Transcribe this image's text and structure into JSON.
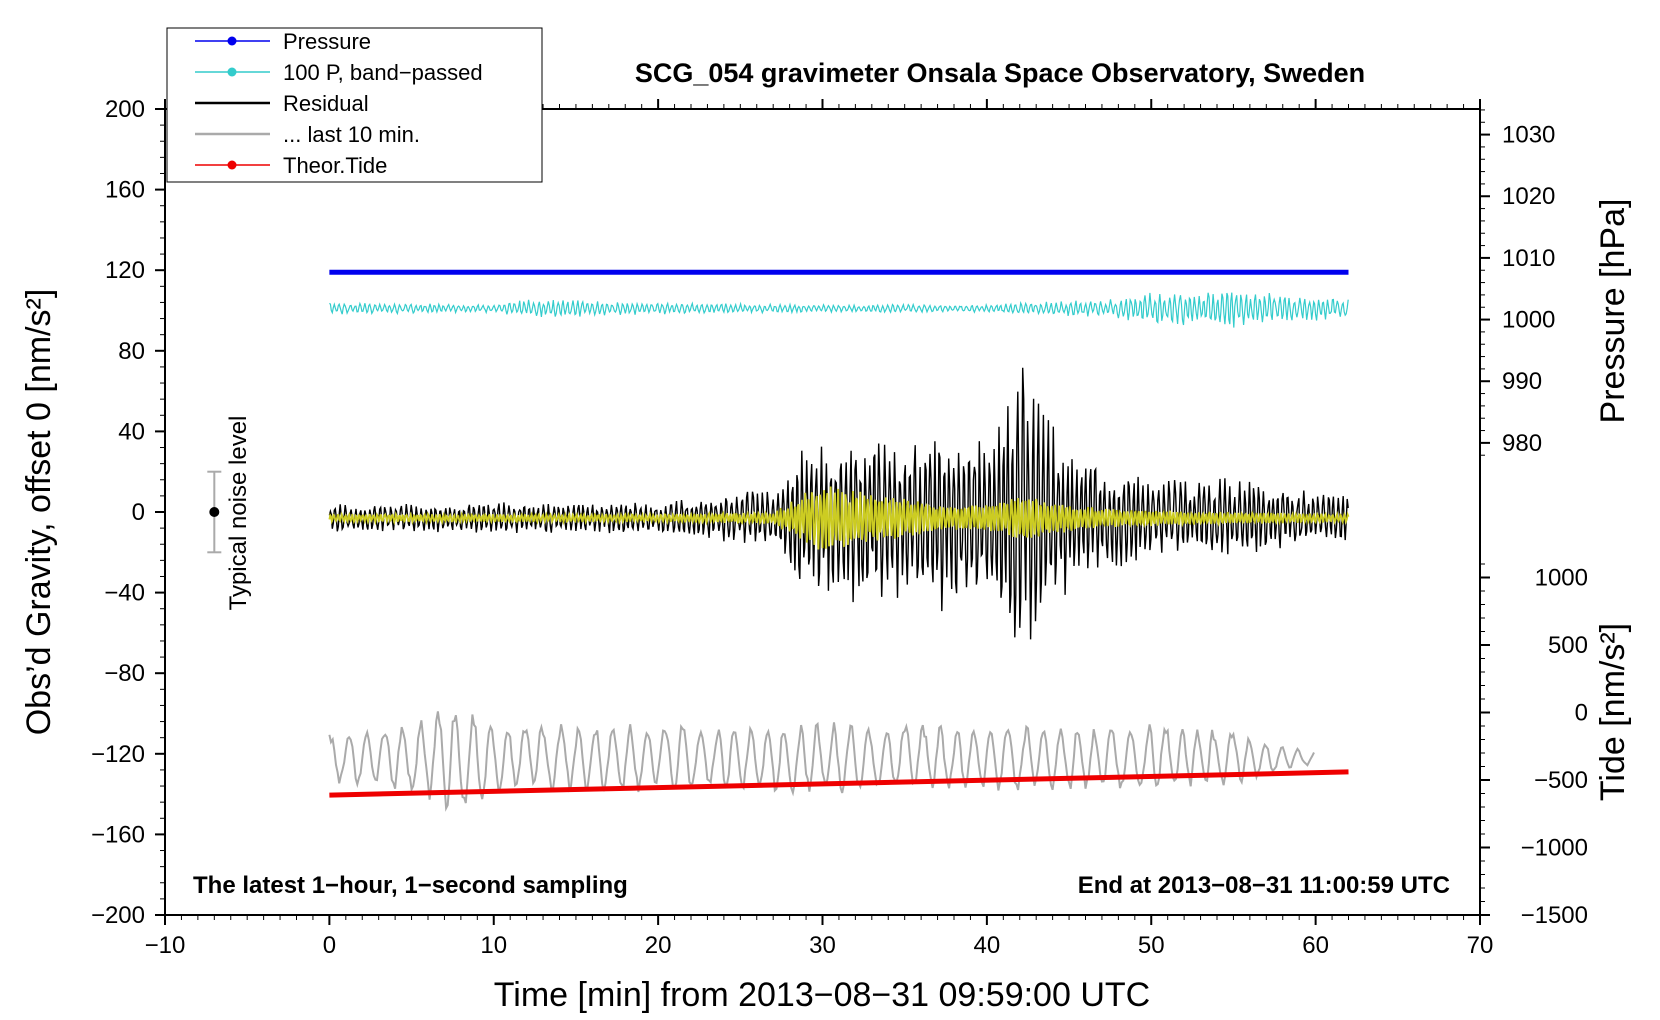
{
  "chart_data": {
    "type": "line",
    "title": "SCG_054 gravimeter Onsala Space Observatory, Sweden",
    "xlabel": "Time [min] from 2013−08−31 09:59:00 UTC",
    "ylabel": "Obs’d Gravity, offset 0 [nm/s²]",
    "ylabel_right_pressure": "Pressure [hPa]",
    "ylabel_right_tide": "Tide [nm/s²]",
    "xlim": [
      -10,
      70
    ],
    "ylim": [
      -200,
      200
    ],
    "x_ticks": [
      -10,
      0,
      10,
      20,
      30,
      40,
      50,
      60,
      70
    ],
    "x_tick_labels": [
      "−10",
      "0",
      "10",
      "20",
      "30",
      "40",
      "50",
      "60",
      "70"
    ],
    "y_ticks": [
      -200,
      -160,
      -120,
      -80,
      -40,
      0,
      40,
      80,
      120,
      160,
      200
    ],
    "y_tick_labels": [
      "−200",
      "−160",
      "−120",
      "−80",
      "−40",
      "0",
      "40",
      "80",
      "120",
      "160",
      "200"
    ],
    "pressure_axis": {
      "ticks": [
        980,
        990,
        1000,
        1010,
        1020,
        1030
      ],
      "tick_labels": [
        "980",
        "990",
        "1000",
        "1010",
        "1020",
        "1030"
      ],
      "gravity_equivalent_at_1000": 95.5,
      "gravity_per_hpa": 3.06
    },
    "tide_axis": {
      "ticks": [
        -1500,
        -1000,
        -500,
        0,
        500,
        1000
      ],
      "tick_labels": [
        "−1500",
        "−1000",
        "−500",
        "0",
        "500",
        "1000"
      ],
      "gravity_equivalent_at_0": -99.5,
      "gravity_per_unit": 0.067
    },
    "legend": [
      {
        "label": "Pressure",
        "color": "#0000ee",
        "marker": true
      },
      {
        "label": "100 P, band−passed",
        "color": "#33cccc",
        "marker": true
      },
      {
        "label": "Residual",
        "color": "#000000",
        "marker": false
      },
      {
        "label": "... last 10 min.",
        "color": "#aaaaaa",
        "marker": false
      },
      {
        "label": "Theor.Tide",
        "color": "#ee0000",
        "marker": true
      }
    ],
    "series": [
      {
        "name": "Pressure",
        "color": "#0000ee",
        "x_range": [
          0,
          62
        ],
        "y_start": 119,
        "y_end": 119
      },
      {
        "name": "100 P, band−passed",
        "color": "#33cccc",
        "x_range": [
          0,
          62
        ],
        "center": 101,
        "envelope_x": [
          0,
          10,
          12,
          20,
          30,
          40,
          48,
          50,
          55,
          58,
          62
        ],
        "envelope_amp": [
          3,
          2,
          5,
          3,
          2,
          2,
          5,
          8,
          10,
          7,
          5
        ]
      },
      {
        "name": "Residual",
        "color": "#000000",
        "x_range": [
          0,
          62
        ],
        "center": -3,
        "envelope_x": [
          0,
          10,
          20,
          27,
          28.5,
          32,
          35,
          37,
          39,
          41,
          42,
          43,
          45,
          50,
          55,
          58,
          62
        ],
        "envelope_amp": [
          7,
          8,
          8,
          15,
          35,
          45,
          40,
          50,
          45,
          55,
          82,
          65,
          35,
          20,
          20,
          15,
          12
        ]
      },
      {
        "name": "Residual (filtered)",
        "color": "#cccc22",
        "x_range": [
          0,
          62
        ],
        "center": -3,
        "envelope_x": [
          0,
          10,
          20,
          27,
          28,
          30,
          32,
          35,
          38,
          41,
          42,
          44,
          47,
          50,
          55,
          62
        ],
        "envelope_amp": [
          2,
          2,
          2,
          3,
          8,
          18,
          14,
          10,
          6,
          8,
          12,
          8,
          5,
          4,
          3,
          2
        ]
      },
      {
        "name": "... last 10 min.",
        "color": "#aaaaaa",
        "x_range": [
          0,
          60
        ],
        "center": -122,
        "envelope_x": [
          0,
          5,
          8,
          10,
          20,
          30,
          40,
          50,
          55,
          58,
          60
        ],
        "envelope_amp": [
          12,
          18,
          30,
          18,
          17,
          18,
          17,
          17,
          14,
          6,
          3
        ]
      },
      {
        "name": "Theor.Tide",
        "color": "#ee0000",
        "x_range": [
          0,
          62
        ],
        "y_start": -140.5,
        "y_end": -129
      }
    ],
    "noise_bar": {
      "label": "Typical noise level",
      "x": -7,
      "y": 0,
      "low": -20,
      "high": 20
    },
    "annotations": {
      "bottom_left": "The latest 1−hour, 1−second sampling",
      "bottom_right": "End at 2013−08−31 11:00:59 UTC"
    }
  }
}
